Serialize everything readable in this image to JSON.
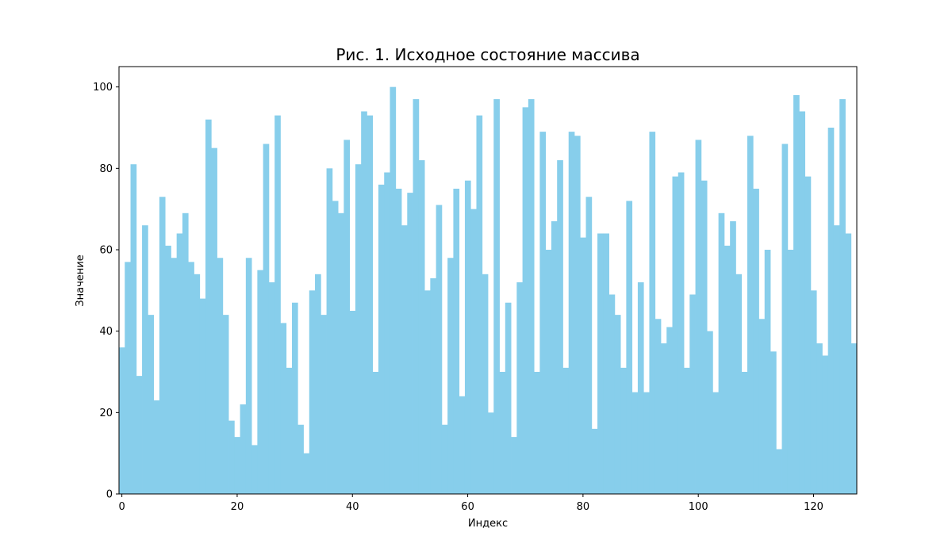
{
  "chart_data": {
    "type": "bar",
    "title": "Рис. 1. Исходное состояние массива",
    "xlabel": "Индекс",
    "ylabel": "Значение",
    "bar_color": "#87CEEB",
    "xlim": [
      -0.5,
      127.5
    ],
    "ylim": [
      0,
      105
    ],
    "xticks": [
      0,
      20,
      40,
      60,
      80,
      100,
      120
    ],
    "yticks": [
      0,
      20,
      40,
      60,
      80,
      100
    ],
    "grid": false,
    "legend": "none",
    "x": [
      0,
      1,
      2,
      3,
      4,
      5,
      6,
      7,
      8,
      9,
      10,
      11,
      12,
      13,
      14,
      15,
      16,
      17,
      18,
      19,
      20,
      21,
      22,
      23,
      24,
      25,
      26,
      27,
      28,
      29,
      30,
      31,
      32,
      33,
      34,
      35,
      36,
      37,
      38,
      39,
      40,
      41,
      42,
      43,
      44,
      45,
      46,
      47,
      48,
      49,
      50,
      51,
      52,
      53,
      54,
      55,
      56,
      57,
      58,
      59,
      60,
      61,
      62,
      63,
      64,
      65,
      66,
      67,
      68,
      69,
      70,
      71,
      72,
      73,
      74,
      75,
      76,
      77,
      78,
      79,
      80,
      81,
      82,
      83,
      84,
      85,
      86,
      87,
      88,
      89,
      90,
      91,
      92,
      93,
      94,
      95,
      96,
      97,
      98,
      99,
      100,
      101,
      102,
      103,
      104,
      105,
      106,
      107,
      108,
      109,
      110,
      111,
      112,
      113,
      114,
      115,
      116,
      117,
      118,
      119,
      120,
      121,
      122,
      123,
      124,
      125,
      126,
      127
    ],
    "values": [
      36,
      57,
      81,
      29,
      66,
      44,
      23,
      73,
      61,
      58,
      64,
      69,
      57,
      54,
      48,
      92,
      85,
      58,
      44,
      18,
      14,
      22,
      58,
      12,
      55,
      86,
      52,
      93,
      42,
      31,
      47,
      17,
      10,
      50,
      54,
      44,
      80,
      72,
      69,
      87,
      45,
      81,
      94,
      93,
      30,
      76,
      79,
      100,
      75,
      66,
      74,
      97,
      82,
      50,
      53,
      71,
      17,
      58,
      75,
      24,
      77,
      70,
      93,
      54,
      20,
      97,
      30,
      47,
      14,
      52,
      95,
      97,
      30,
      89,
      60,
      67,
      82,
      31,
      89,
      88,
      63,
      73,
      16,
      64,
      64,
      49,
      44,
      31,
      72,
      25,
      52,
      25,
      89,
      43,
      37,
      41,
      78,
      79,
      31,
      49,
      87,
      77,
      40,
      25,
      69,
      61,
      67,
      54,
      30,
      88,
      75,
      43,
      60,
      35,
      11,
      86,
      60,
      98,
      94,
      78,
      50,
      37,
      34,
      90,
      66,
      97,
      64,
      37
    ]
  }
}
